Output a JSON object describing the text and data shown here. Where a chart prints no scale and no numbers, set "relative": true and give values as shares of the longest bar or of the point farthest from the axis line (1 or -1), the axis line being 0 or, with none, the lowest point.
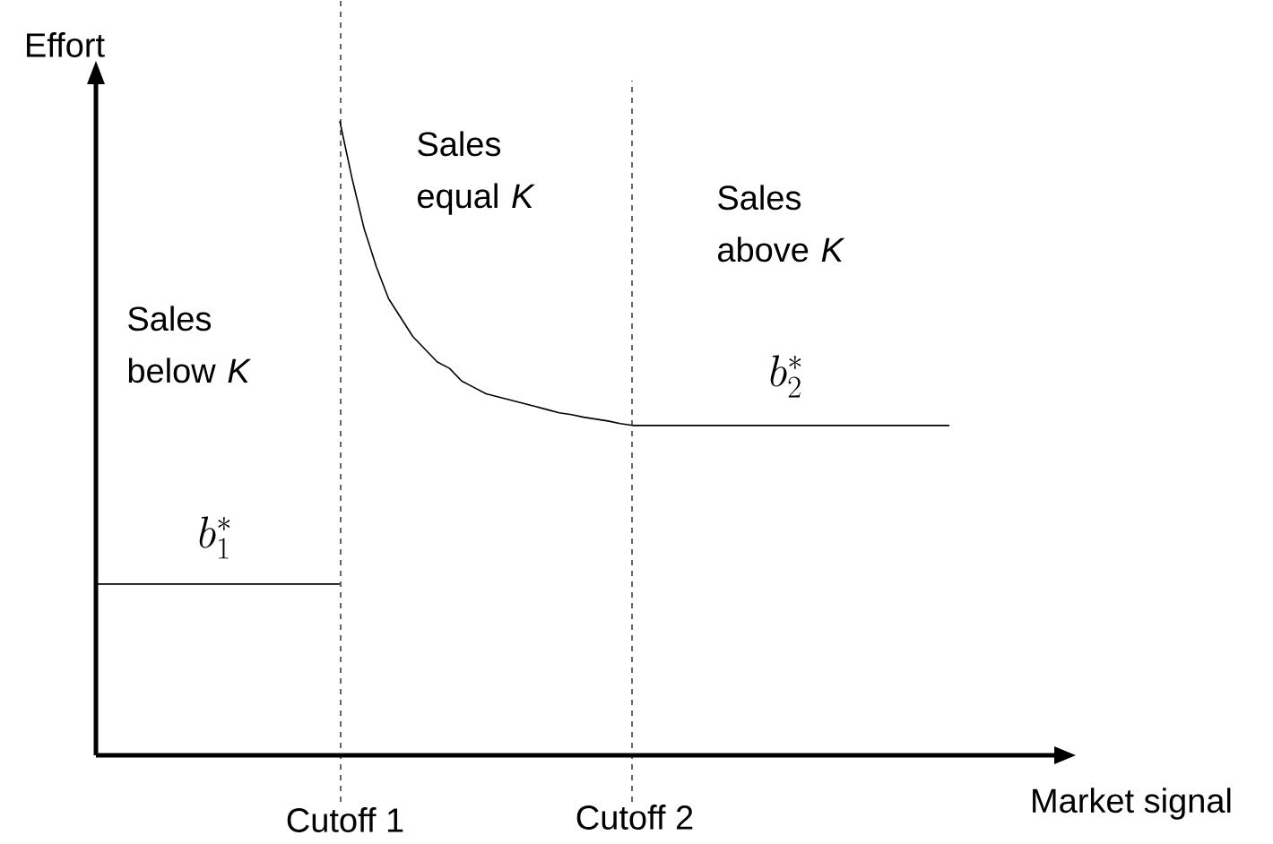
{
  "chart_data": {
    "type": "line",
    "relative": true,
    "xlabel": "Market signal",
    "ylabel": "Effort",
    "categories": [
      null,
      null,
      null,
      null,
      null,
      null,
      null,
      null,
      null,
      null,
      null,
      null,
      null,
      null,
      null,
      null,
      null,
      null,
      null,
      null,
      null,
      null,
      null,
      null,
      null,
      null,
      null,
      null,
      null,
      null,
      null,
      null,
      null,
      null,
      null,
      null,
      null,
      null,
      null,
      null,
      null,
      null,
      null,
      null,
      null,
      null,
      null,
      null,
      null,
      null,
      null,
      null,
      null,
      null,
      null,
      null,
      null,
      null,
      null,
      null,
      null,
      null,
      null,
      null,
      null,
      null,
      null,
      null,
      null,
      null,
      null,
      null,
      null,
      null,
      null,
      null,
      null,
      null,
      null
    ],
    "series": [
      {
        "color": "#000000",
        "values": [
          0.27,
          0.27,
          0.27,
          0.27,
          0.27,
          0.27,
          0.27,
          0.27,
          0.27,
          0.27,
          0.27,
          0.27,
          0.27,
          0.27,
          0.27,
          0.27,
          0.27,
          0.27,
          0.27,
          0.27,
          0.27,
          null,
          null,
          null,
          null,
          null,
          null,
          null,
          null,
          null,
          null,
          null,
          null,
          null,
          null,
          null,
          null,
          null,
          null,
          null,
          null,
          null,
          null,
          null,
          null,
          null,
          null,
          null,
          null,
          null,
          null,
          null,
          null,
          null,
          null,
          null,
          null,
          null,
          null,
          null,
          null,
          null,
          null,
          null,
          null,
          null,
          null,
          null,
          null,
          null,
          null,
          null,
          null,
          null,
          null,
          null,
          null,
          null,
          null
        ]
      },
      {
        "color": "#000000",
        "values": [
          null,
          null,
          null,
          null,
          null,
          null,
          null,
          null,
          null,
          null,
          null,
          null,
          null,
          null,
          null,
          null,
          null,
          null,
          null,
          null,
          1.0,
          0.91,
          0.83,
          0.77,
          0.72,
          0.69,
          0.66,
          0.64,
          0.62,
          0.61,
          0.59,
          0.58,
          0.57,
          0.565,
          0.56,
          0.555,
          0.55,
          0.545,
          0.54,
          0.537,
          0.533,
          0.53,
          0.527,
          0.523,
          0.52,
          0.52,
          0.52,
          0.52,
          0.52,
          0.52,
          0.52,
          0.52,
          0.52,
          0.52,
          0.52,
          0.52,
          0.52,
          0.52,
          0.52,
          0.52,
          0.52,
          0.52,
          0.52,
          0.52,
          0.52,
          0.52,
          0.52,
          0.52,
          0.52,
          0.52,
          0.52,
          null,
          null,
          null,
          null,
          null,
          null,
          null,
          null
        ]
      }
    ],
    "annotations": [
      "Sales below *K*",
      "Sales equal *K*",
      "Sales above *K*",
      "b_1^*",
      "b_2^*",
      "Cutoff 1",
      "Cutoff 2"
    ],
    "marker": "none",
    "line_style": "solid"
  }
}
